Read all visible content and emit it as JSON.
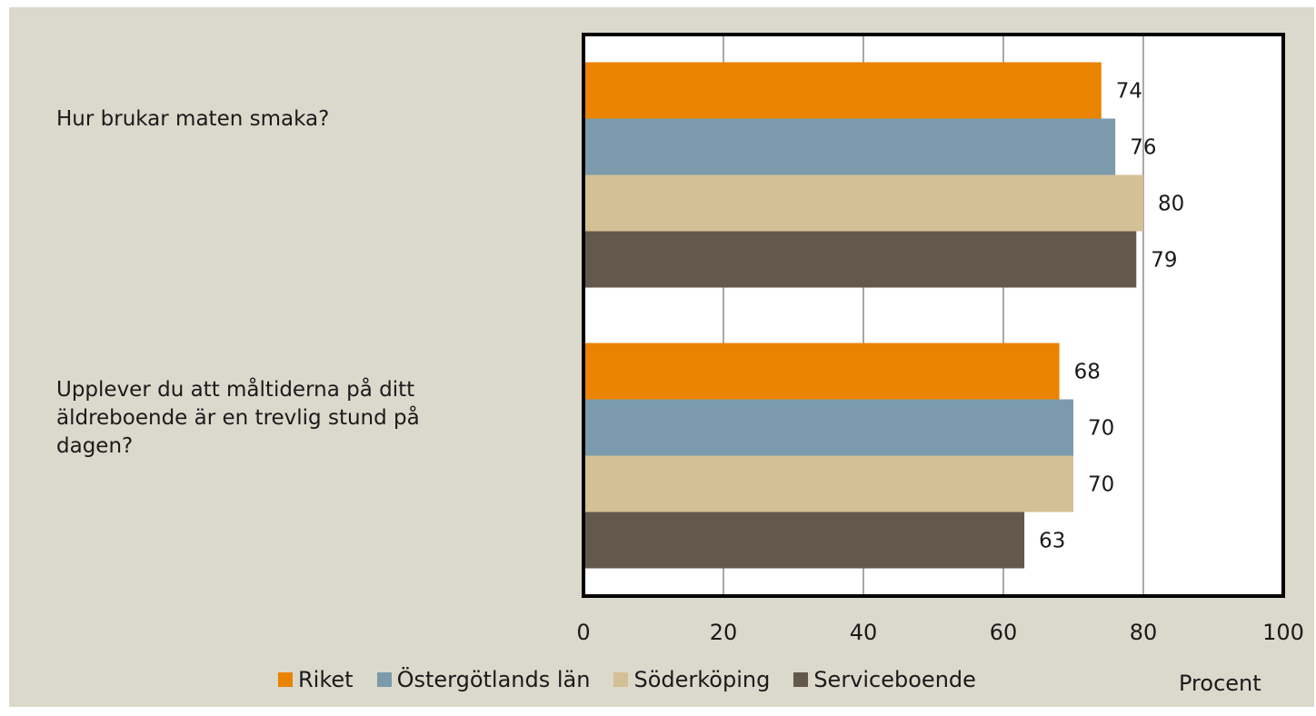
{
  "chart_data": {
    "type": "bar",
    "orientation": "horizontal",
    "categories": [
      "Hur brukar maten smaka?",
      "Upplever du att måltiderna på ditt äldreboende är en trevlig stund på dagen?"
    ],
    "series": [
      {
        "name": "Riket",
        "color": "#e98300",
        "values": [
          74,
          68
        ]
      },
      {
        "name": "Östergötlands län",
        "color": "#7b9aac",
        "values": [
          76,
          70
        ]
      },
      {
        "name": "Söderköping",
        "color": "#d4c095",
        "values": [
          80,
          70
        ]
      },
      {
        "name": "Serviceboende",
        "color": "#64574b",
        "values": [
          79,
          63
        ]
      }
    ],
    "xlabel": "Procent",
    "xlim": [
      0,
      100
    ],
    "xticks": [
      "0",
      "20",
      "40",
      "60",
      "80",
      "100"
    ],
    "grid": "vertical",
    "data_labels": true,
    "legend_position": "bottom"
  }
}
